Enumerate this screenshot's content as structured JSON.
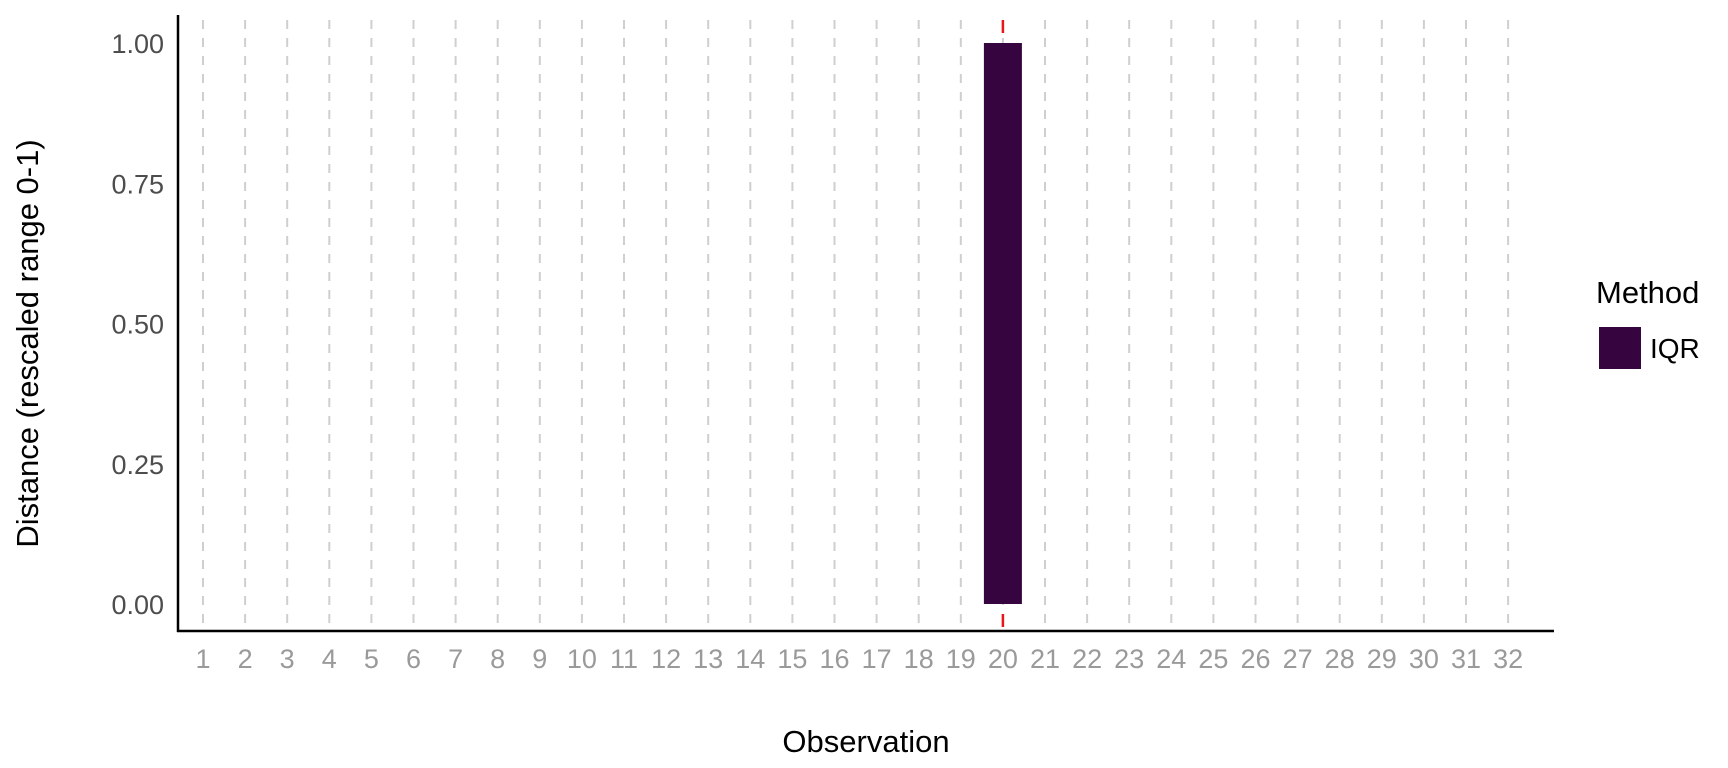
{
  "chart_data": {
    "type": "bar",
    "xlabel": "Observation",
    "ylabel": "Distance (rescaled range 0-1)",
    "x_ticks": [
      "1",
      "2",
      "3",
      "4",
      "5",
      "6",
      "7",
      "8",
      "9",
      "10",
      "11",
      "12",
      "13",
      "14",
      "15",
      "16",
      "17",
      "18",
      "19",
      "20",
      "21",
      "22",
      "23",
      "24",
      "25",
      "26",
      "27",
      "28",
      "29",
      "30",
      "31",
      "32"
    ],
    "y_ticks": [
      "0.00",
      "0.25",
      "0.50",
      "0.75",
      "1.00"
    ],
    "ylim": [
      0,
      1
    ],
    "grid": "vertical dashed",
    "highlighted_observation": 20,
    "series": [
      {
        "name": "IQR",
        "color": "#36043f",
        "bars": [
          {
            "x": 20,
            "value": 1.0
          }
        ]
      }
    ],
    "legend": {
      "title": "Method",
      "position": "right"
    },
    "colors": {
      "highlight": "#e8161c",
      "grid": "#cfcfcf",
      "axis": "#000000"
    }
  }
}
